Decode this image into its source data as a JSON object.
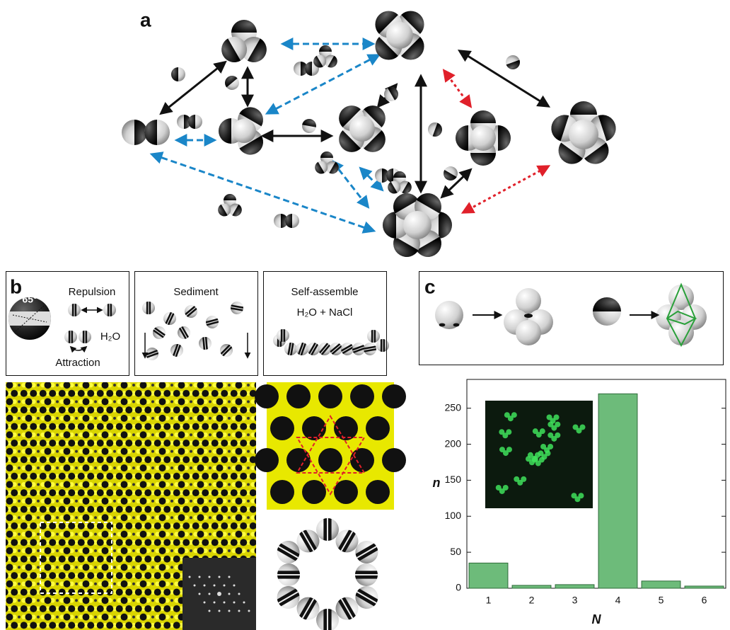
{
  "panel_labels": {
    "a": "a",
    "b": "b",
    "c": "c"
  },
  "panel_b": {
    "repulsion": "Repulsion",
    "attraction": "Attraction",
    "angle": "65°",
    "solvent": "H₂O",
    "sediment": "Sediment",
    "self_assemble": "Self-assemble",
    "salt_solution": "H₂O + NaCl"
  },
  "chart_data": {
    "type": "bar",
    "categories": [
      "1",
      "2",
      "3",
      "4",
      "5",
      "6"
    ],
    "values": [
      35,
      4,
      5,
      270,
      10,
      3
    ],
    "color": "#6dbb7a",
    "ylim": [
      0,
      290
    ],
    "yticks": [
      0,
      50,
      100,
      150,
      200,
      250
    ],
    "xlabel": "N",
    "ylabel": "n"
  }
}
